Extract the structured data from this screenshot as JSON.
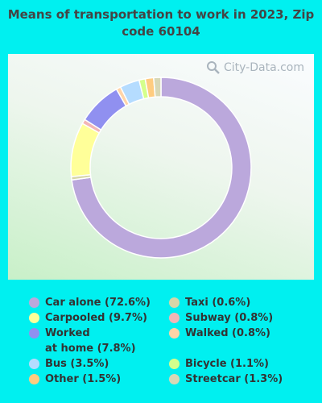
{
  "title": "Means of transportation to work in 2023, Zip code 60104",
  "watermark": "City-Data.com",
  "chart_data": {
    "type": "pie",
    "donut": true,
    "series": [
      {
        "name": "Car alone",
        "value": 72.6,
        "color": "#bba8dc",
        "label": "Car alone (72.6%)"
      },
      {
        "name": "Carpooled",
        "value": 9.7,
        "color": "#ffff99",
        "label": "Carpooled (9.7%)"
      },
      {
        "name": "Worked at home",
        "value": 7.8,
        "color": "#9090f0",
        "label_line1": "Worked",
        "label_line2": "at home (7.8%)"
      },
      {
        "name": "Taxi",
        "value": 0.6,
        "color": "#d6d6a8",
        "label": "Taxi (0.6%)"
      },
      {
        "name": "Subway",
        "value": 0.8,
        "color": "#f3b6b6",
        "label": "Subway (0.8%)"
      },
      {
        "name": "Walked",
        "value": 0.8,
        "color": "#ffd4a8",
        "label": "Walked (0.8%)"
      },
      {
        "name": "Bus",
        "value": 3.5,
        "color": "#b5dcff",
        "label": "Bus (3.5%)"
      },
      {
        "name": "Bicycle",
        "value": 1.1,
        "color": "#d4ff8c",
        "label": "Bicycle (1.1%)"
      },
      {
        "name": "Other",
        "value": 1.5,
        "color": "#ffcc80",
        "label": "Other (1.5%)"
      },
      {
        "name": "Streetcar",
        "value": 1.3,
        "color": "#d8d8b6",
        "label": "Streetcar (1.3%)"
      }
    ],
    "draw_order": [
      "Car alone",
      "Taxi",
      "Carpooled",
      "Subway",
      "Worked at home",
      "Walked",
      "Bus",
      "Bicycle",
      "Other",
      "Streetcar"
    ]
  }
}
